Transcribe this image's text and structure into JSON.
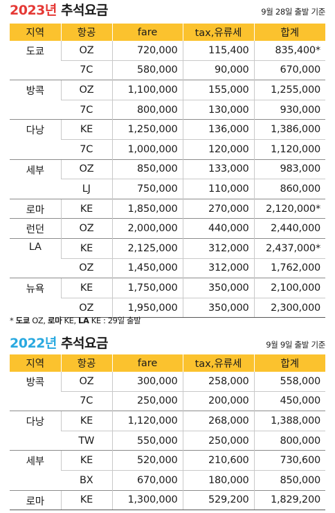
{
  "colors": {
    "header_bg": "#fbc22e",
    "year_2023": "#e53935",
    "year_2022": "#29a9e0"
  },
  "section1": {
    "year": "2023년",
    "title": " 추석요금",
    "note": "9월 28일 출발 기준",
    "headers": [
      "지역",
      "항공",
      "fare",
      "tax,유류세",
      "합계"
    ],
    "groups": [
      {
        "city": "도쿄",
        "rows": [
          {
            "airline": "OZ",
            "fare": "720,000",
            "tax": "115,400",
            "total": "835,400*"
          },
          {
            "airline": "7C",
            "fare": "580,000",
            "tax": "90,000",
            "total": "670,000"
          }
        ]
      },
      {
        "city": "방콕",
        "rows": [
          {
            "airline": "OZ",
            "fare": "1,100,000",
            "tax": "155,000",
            "total": "1,255,000"
          },
          {
            "airline": "7C",
            "fare": "800,000",
            "tax": "130,000",
            "total": "930,000"
          }
        ]
      },
      {
        "city": "다낭",
        "rows": [
          {
            "airline": "KE",
            "fare": "1,250,000",
            "tax": "136,000",
            "total": "1,386,000"
          },
          {
            "airline": "7C",
            "fare": "1,000,000",
            "tax": "120,000",
            "total": "1,120,000"
          }
        ]
      },
      {
        "city": "세부",
        "rows": [
          {
            "airline": "OZ",
            "fare": "850,000",
            "tax": "133,000",
            "total": "983,000"
          },
          {
            "airline": "LJ",
            "fare": "750,000",
            "tax": "110,000",
            "total": "860,000"
          }
        ]
      },
      {
        "city": "로마",
        "rows": [
          {
            "airline": "KE",
            "fare": "1,850,000",
            "tax": "270,000",
            "total": "2,120,000*"
          }
        ]
      },
      {
        "city": "런던",
        "rows": [
          {
            "airline": "OZ",
            "fare": "2,000,000",
            "tax": "440,000",
            "total": "2,440,000"
          }
        ]
      },
      {
        "city": "LA",
        "rows": [
          {
            "airline": "KE",
            "fare": "2,125,000",
            "tax": "312,000",
            "total": "2,437,000*"
          },
          {
            "airline": "OZ",
            "fare": "1,450,000",
            "tax": "312,000",
            "total": "1,762,000"
          }
        ]
      },
      {
        "city": "뉴욕",
        "rows": [
          {
            "airline": "KE",
            "fare": "1,750,000",
            "tax": "350,000",
            "total": "2,100,000"
          },
          {
            "airline": "OZ",
            "fare": "1,950,000",
            "tax": "350,000",
            "total": "2,300,000"
          }
        ]
      }
    ],
    "footnote": {
      "star": "* ",
      "city1": "도쿄",
      "airline1": " OZ,  ",
      "city2": "로마",
      "airline2": " KE, ",
      "city3": "LA",
      "airline3": " KE : 29일 출발"
    }
  },
  "section2": {
    "year": "2022년",
    "title": " 추석요금",
    "note": "9월 9일 출발 기준",
    "headers": [
      "지역",
      "항공",
      "fare",
      "tax,유류세",
      "합계"
    ],
    "groups": [
      {
        "city": "방콕",
        "rows": [
          {
            "airline": "OZ",
            "fare": "300,000",
            "tax": "258,000",
            "total": "558,000"
          },
          {
            "airline": "7C",
            "fare": "250,000",
            "tax": "200,000",
            "total": "450,000"
          }
        ]
      },
      {
        "city": "다낭",
        "rows": [
          {
            "airline": "KE",
            "fare": "1,120,000",
            "tax": "268,000",
            "total": "1,388,000"
          },
          {
            "airline": "TW",
            "fare": "550,000",
            "tax": "250,000",
            "total": "800,000"
          }
        ]
      },
      {
        "city": "세부",
        "rows": [
          {
            "airline": "KE",
            "fare": "520,000",
            "tax": "210,600",
            "total": "730,600"
          },
          {
            "airline": "BX",
            "fare": "670,000",
            "tax": "180,000",
            "total": "850,000"
          }
        ]
      },
      {
        "city": "로마",
        "rows": [
          {
            "airline": "KE",
            "fare": "1,300,000",
            "tax": "529,200",
            "total": "1,829,200"
          }
        ]
      }
    ]
  }
}
